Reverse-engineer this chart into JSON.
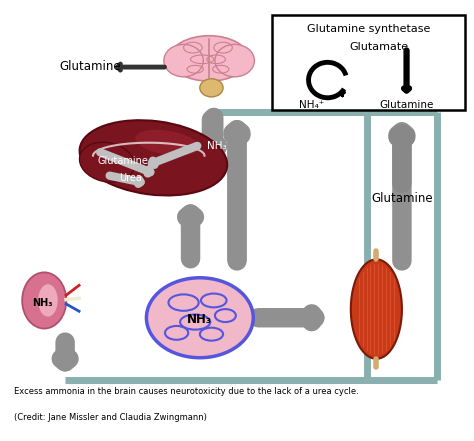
{
  "caption_line1": "Excess ammonia in the brain causes neurotoxicity due to the lack of a urea cycle.",
  "caption_line2": "(Credit: Jane Missler and Claudia Zwingmann)",
  "box_title": "Glutamine synthetase",
  "box_line2": "Glutamate",
  "box_nh4": "NH₄⁺",
  "box_glutamine_label": "Glutamine",
  "label_glutamine_brain": "Glutamine",
  "label_glutamine_muscle": "Glutamine",
  "label_nh3_liver": "NH₃",
  "label_glutamine_liver": "Glutamine",
  "label_urea_liver": "Urea",
  "label_nh3_kidney": "NH₃",
  "label_nh3_gut": "NH₃",
  "arrow_gray": "#999999",
  "arrow_dark": "#222222",
  "border_color": "#8aafaf",
  "background": "#ffffff",
  "fig_width": 4.74,
  "fig_height": 4.41,
  "dpi": 100
}
